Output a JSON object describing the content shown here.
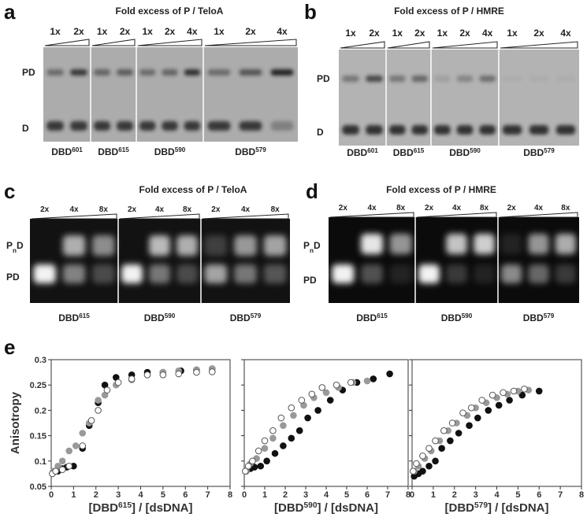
{
  "gels": [
    {
      "label": "a",
      "title": "Fold excess of P / TeloA",
      "band_labels": [
        [
          "PD"
        ],
        [
          "D"
        ]
      ],
      "lane_groups": [
        {
          "lanes": [
            "1x",
            "2x"
          ],
          "sample": [
            "DBD",
            "601"
          ]
        },
        {
          "lanes": [
            "1x",
            "2x"
          ],
          "sample": [
            "DBD",
            "615"
          ]
        },
        {
          "lanes": [
            "1x",
            "2x",
            "4x"
          ],
          "sample": [
            "DBD",
            "590"
          ]
        },
        {
          "lanes": [
            "1x",
            "2x",
            "4x"
          ],
          "sample": [
            "DBD",
            "579"
          ]
        }
      ]
    },
    {
      "label": "b",
      "title": "Fold excess of P / HMRE",
      "band_labels": [
        [
          "PD"
        ],
        [
          "D"
        ]
      ],
      "lane_groups": [
        {
          "lanes": [
            "1x",
            "2x"
          ],
          "sample": [
            "DBD",
            "601"
          ]
        },
        {
          "lanes": [
            "1x",
            "2x"
          ],
          "sample": [
            "DBD",
            "615"
          ]
        },
        {
          "lanes": [
            "1x",
            "2x",
            "4x"
          ],
          "sample": [
            "DBD",
            "590"
          ]
        },
        {
          "lanes": [
            "1x",
            "2x",
            "4x"
          ],
          "sample": [
            "DBD",
            "579"
          ]
        }
      ]
    },
    {
      "label": "c",
      "title": "Fold excess of P / TeloA",
      "band_labels": [
        [
          "P",
          "n",
          "D"
        ],
        [
          "PD"
        ]
      ],
      "lane_groups": [
        {
          "lanes": [
            "2x",
            "4x",
            "8x"
          ],
          "sample": [
            "DBD",
            "615"
          ]
        },
        {
          "lanes": [
            "2x",
            "4x",
            "8x"
          ],
          "sample": [
            "DBD",
            "590"
          ]
        },
        {
          "lanes": [
            "2x",
            "4x",
            "8x"
          ],
          "sample": [
            "DBD",
            "579"
          ]
        }
      ]
    },
    {
      "label": "d",
      "title": "Fold excess of P / HMRE",
      "band_labels": [
        [
          "P",
          "n",
          "D"
        ],
        [
          "PD"
        ]
      ],
      "lane_groups": [
        {
          "lanes": [
            "2x",
            "4x",
            "8x"
          ],
          "sample": [
            "DBD",
            "615"
          ]
        },
        {
          "lanes": [
            "2x",
            "4x",
            "8x"
          ],
          "sample": [
            "DBD",
            "590"
          ]
        },
        {
          "lanes": [
            "2x",
            "4x",
            "8x"
          ],
          "sample": [
            "DBD",
            "579"
          ]
        }
      ]
    }
  ],
  "panel_e_label": "e",
  "chart_data": [
    {
      "type": "scatter",
      "ylabel": "Anisotropy",
      "xlabel": [
        "[DBD",
        "615",
        "] / [dsDNA]"
      ],
      "xlim": [
        0,
        8
      ],
      "xticks": [
        0,
        1,
        2,
        3,
        4,
        5,
        6,
        7,
        8
      ],
      "ylim": [
        0.05,
        0.3
      ],
      "yticks": [
        0.05,
        0.1,
        0.15,
        0.2,
        0.25,
        0.3
      ],
      "ytick_labels": true,
      "series": [
        {
          "color": "#111111",
          "filled": true,
          "x": [
            0.1,
            0.3,
            0.5,
            0.7,
            1.0,
            1.4,
            1.7,
            2.1,
            2.4,
            2.9,
            3.6,
            4.3,
            5.0,
            5.8,
            6.5,
            7.2
          ],
          "values": [
            0.078,
            0.08,
            0.085,
            0.088,
            0.09,
            0.125,
            0.17,
            0.215,
            0.25,
            0.265,
            0.27,
            0.275,
            0.275,
            0.278,
            0.28,
            0.282
          ]
        },
        {
          "color": "#999999",
          "filled": true,
          "x": [
            0.1,
            0.3,
            0.5,
            0.8,
            1.1,
            1.4,
            1.7,
            2.1,
            2.4,
            2.9,
            3.6,
            4.3,
            5.0,
            5.7,
            6.5,
            7.2
          ],
          "values": [
            0.08,
            0.09,
            0.1,
            0.12,
            0.13,
            0.155,
            0.175,
            0.22,
            0.23,
            0.25,
            0.26,
            0.27,
            0.275,
            0.278,
            0.28,
            0.282
          ]
        },
        {
          "color": "#555555",
          "filled": false,
          "x": [
            0.05,
            0.2,
            0.5,
            0.8,
            1.4,
            1.8,
            2.1,
            2.5,
            3.0,
            3.6,
            4.3,
            5.0,
            5.7,
            6.5,
            7.2
          ],
          "values": [
            0.075,
            0.08,
            0.083,
            0.09,
            0.13,
            0.18,
            0.2,
            0.24,
            0.255,
            0.262,
            0.27,
            0.27,
            0.272,
            0.275,
            0.276
          ]
        }
      ]
    },
    {
      "type": "scatter",
      "xlabel": [
        "[DBD",
        "590",
        "] / [dsDNA]"
      ],
      "xlim": [
        0,
        8
      ],
      "xticks": [
        0,
        1,
        2,
        3,
        4,
        5,
        6,
        7,
        8
      ],
      "ylim": [
        0.05,
        0.3
      ],
      "yticks": [
        0.05,
        0.1,
        0.15,
        0.2,
        0.25,
        0.3
      ],
      "ytick_labels": false,
      "series": [
        {
          "color": "#111111",
          "filled": true,
          "x": [
            0.1,
            0.3,
            0.5,
            0.8,
            1.1,
            1.5,
            1.9,
            2.3,
            2.7,
            3.1,
            3.6,
            4.2,
            4.8,
            5.5,
            6.3,
            7.1
          ],
          "values": [
            0.08,
            0.085,
            0.088,
            0.09,
            0.1,
            0.115,
            0.13,
            0.145,
            0.16,
            0.185,
            0.2,
            0.22,
            0.24,
            0.255,
            0.262,
            0.272
          ]
        },
        {
          "color": "#999999",
          "filled": true,
          "x": [
            0.1,
            0.3,
            0.6,
            1.0,
            1.4,
            1.9,
            2.4,
            2.9,
            3.4,
            4.0,
            4.6,
            5.3,
            6.0
          ],
          "values": [
            0.08,
            0.095,
            0.105,
            0.125,
            0.145,
            0.17,
            0.19,
            0.21,
            0.225,
            0.235,
            0.245,
            0.255,
            0.258
          ]
        },
        {
          "color": "#555555",
          "filled": false,
          "x": [
            0.05,
            0.2,
            0.4,
            0.7,
            1.0,
            1.4,
            1.8,
            2.3,
            2.8,
            3.3,
            3.8,
            4.5,
            5.2
          ],
          "values": [
            0.08,
            0.09,
            0.1,
            0.12,
            0.14,
            0.16,
            0.185,
            0.205,
            0.22,
            0.232,
            0.245,
            0.25,
            0.255
          ]
        }
      ]
    },
    {
      "type": "scatter",
      "xlabel": [
        "[DBD",
        "579",
        "] / [dsDNA]"
      ],
      "xlim": [
        0,
        8
      ],
      "xticks": [
        0,
        1,
        2,
        3,
        4,
        5,
        6,
        7,
        8
      ],
      "ylim": [
        0.05,
        0.3
      ],
      "yticks": [
        0.05,
        0.1,
        0.15,
        0.2,
        0.25,
        0.3
      ],
      "ytick_labels": false,
      "series": [
        {
          "color": "#111111",
          "filled": true,
          "x": [
            0.1,
            0.3,
            0.5,
            0.8,
            1.1,
            1.4,
            1.8,
            2.2,
            2.7,
            3.1,
            3.6,
            4.1,
            4.6,
            5.2,
            6.0
          ],
          "values": [
            0.07,
            0.075,
            0.08,
            0.09,
            0.1,
            0.125,
            0.14,
            0.155,
            0.17,
            0.185,
            0.2,
            0.21,
            0.22,
            0.23,
            0.238
          ]
        },
        {
          "color": "#999999",
          "filled": true,
          "x": [
            0.1,
            0.3,
            0.6,
            0.9,
            1.3,
            1.7,
            2.1,
            2.6,
            3.0,
            3.5,
            4.0,
            4.5,
            5.0,
            5.5
          ],
          "values": [
            0.08,
            0.09,
            0.105,
            0.12,
            0.14,
            0.16,
            0.175,
            0.19,
            0.205,
            0.215,
            0.225,
            0.232,
            0.238,
            0.24
          ]
        },
        {
          "color": "#555555",
          "filled": false,
          "x": [
            0.05,
            0.2,
            0.5,
            0.8,
            1.1,
            1.5,
            1.9,
            2.4,
            2.8,
            3.3,
            3.8,
            4.3,
            4.8,
            5.3
          ],
          "values": [
            0.08,
            0.095,
            0.11,
            0.125,
            0.14,
            0.16,
            0.175,
            0.195,
            0.205,
            0.22,
            0.23,
            0.235,
            0.238,
            0.242
          ]
        }
      ]
    }
  ]
}
